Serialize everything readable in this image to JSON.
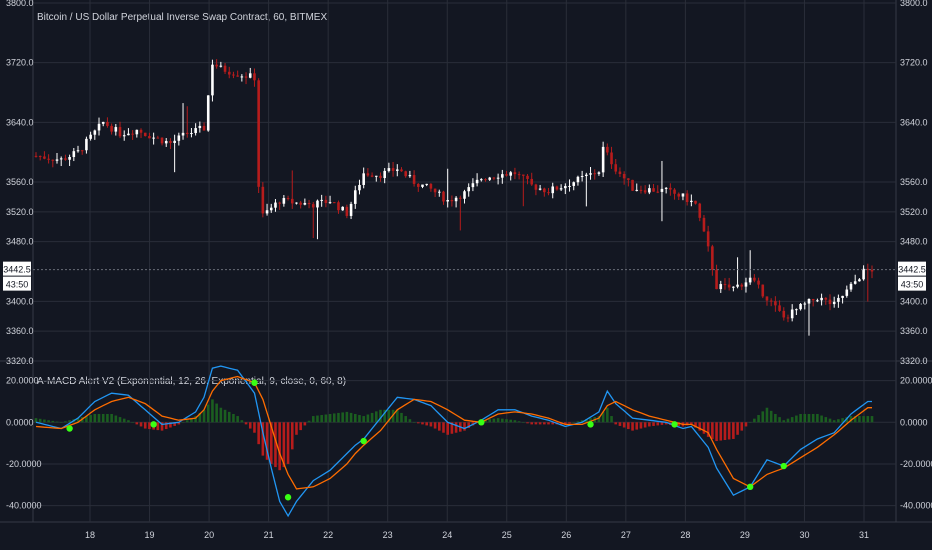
{
  "header": {
    "title": "Bitcoin / US Dollar Perpetual Inverse Swap Contract, 60, BITMEX",
    "indicator_title": "A-MACD Alert V2 (Exponential, 12, 26, Exponential, 9, close, 0, 60, 8)"
  },
  "colors": {
    "background": "#131722",
    "grid": "#2a2e39",
    "up_candle": "#ffffff",
    "down_candle": "#b71c1c",
    "macd_line": "#2196f3",
    "signal_line": "#ff6d00",
    "hist_positive": "#1b5e20",
    "hist_negative": "#b71c1c",
    "cross_marker": "#39ff14",
    "axis_text": "#d1d4dc"
  },
  "chart_data": [
    {
      "type": "candlestick",
      "price_axis": {
        "ticks": [
          "3800.0",
          "3720.0",
          "3640.0",
          "3560.0",
          "3520.0",
          "3480.0",
          "3400.0",
          "3360.0",
          "3320.0"
        ],
        "range": [
          3320,
          3800
        ]
      },
      "time_axis": {
        "ticks": [
          "18",
          "19",
          "20",
          "21",
          "22",
          "23",
          "24",
          "25",
          "26",
          "27",
          "28",
          "29",
          "30",
          "31"
        ]
      },
      "price_path": [
        [
          0,
          3595
        ],
        [
          6,
          3590
        ],
        [
          10,
          3600
        ],
        [
          16,
          3640
        ],
        [
          20,
          3625
        ],
        [
          24,
          3630
        ],
        [
          28,
          3620
        ],
        [
          32,
          3612
        ],
        [
          36,
          3625
        ],
        [
          40,
          3632
        ],
        [
          42,
          3720
        ],
        [
          44,
          3712
        ],
        [
          48,
          3705
        ],
        [
          52,
          3700
        ],
        [
          53,
          3555
        ],
        [
          54,
          3515
        ],
        [
          58,
          3535
        ],
        [
          62,
          3532
        ],
        [
          66,
          3530
        ],
        [
          70,
          3535
        ],
        [
          74,
          3518
        ],
        [
          78,
          3572
        ],
        [
          82,
          3570
        ],
        [
          86,
          3578
        ],
        [
          90,
          3560
        ],
        [
          94,
          3550
        ],
        [
          98,
          3535
        ],
        [
          102,
          3545
        ],
        [
          106,
          3565
        ],
        [
          110,
          3570
        ],
        [
          114,
          3572
        ],
        [
          118,
          3555
        ],
        [
          122,
          3548
        ],
        [
          126,
          3556
        ],
        [
          130,
          3565
        ],
        [
          134,
          3575
        ],
        [
          135,
          3605
        ],
        [
          138,
          3578
        ],
        [
          142,
          3552
        ],
        [
          146,
          3550
        ],
        [
          150,
          3548
        ],
        [
          154,
          3540
        ],
        [
          157,
          3530
        ],
        [
          160,
          3470
        ],
        [
          162,
          3420
        ],
        [
          166,
          3418
        ],
        [
          170,
          3430
        ],
        [
          174,
          3405
        ],
        [
          178,
          3378
        ],
        [
          182,
          3392
        ],
        [
          186,
          3405
        ],
        [
          190,
          3395
        ],
        [
          194,
          3420
        ],
        [
          197,
          3440
        ],
        [
          199,
          3442.5
        ]
      ],
      "last_price": "3442.5",
      "countdown": "43:50"
    },
    {
      "type": "macd",
      "y_axis": {
        "ticks": [
          "20.0000",
          "0.0000",
          "-20.0000",
          "-40.0000"
        ],
        "range": [
          -45,
          28
        ]
      },
      "macd_path": [
        [
          0,
          0
        ],
        [
          6,
          -3
        ],
        [
          10,
          2
        ],
        [
          14,
          10
        ],
        [
          18,
          14
        ],
        [
          22,
          13
        ],
        [
          26,
          6
        ],
        [
          30,
          -1
        ],
        [
          34,
          0
        ],
        [
          38,
          5
        ],
        [
          40,
          12
        ],
        [
          42,
          26
        ],
        [
          44,
          27
        ],
        [
          48,
          25
        ],
        [
          52,
          14
        ],
        [
          54,
          -5
        ],
        [
          56,
          -22
        ],
        [
          58,
          -38
        ],
        [
          60,
          -45
        ],
        [
          62,
          -38
        ],
        [
          66,
          -28
        ],
        [
          70,
          -23
        ],
        [
          74,
          -15
        ],
        [
          76,
          -11
        ],
        [
          78,
          -8
        ],
        [
          82,
          2
        ],
        [
          86,
          12
        ],
        [
          90,
          11
        ],
        [
          94,
          8
        ],
        [
          98,
          0
        ],
        [
          102,
          -3
        ],
        [
          106,
          1
        ],
        [
          110,
          6
        ],
        [
          114,
          6
        ],
        [
          118,
          3
        ],
        [
          122,
          1
        ],
        [
          126,
          -2
        ],
        [
          130,
          0
        ],
        [
          134,
          5
        ],
        [
          136,
          15
        ],
        [
          138,
          9
        ],
        [
          142,
          2
        ],
        [
          146,
          1
        ],
        [
          150,
          0
        ],
        [
          154,
          -3
        ],
        [
          156,
          -2
        ],
        [
          160,
          -12
        ],
        [
          162,
          -22
        ],
        [
          166,
          -35
        ],
        [
          170,
          -31
        ],
        [
          174,
          -18
        ],
        [
          178,
          -21
        ],
        [
          182,
          -13
        ],
        [
          186,
          -8
        ],
        [
          190,
          -5
        ],
        [
          194,
          4
        ],
        [
          198,
          10
        ]
      ],
      "signal_path": [
        [
          0,
          -2
        ],
        [
          6,
          -3
        ],
        [
          10,
          0
        ],
        [
          14,
          6
        ],
        [
          18,
          10
        ],
        [
          22,
          12
        ],
        [
          26,
          9
        ],
        [
          30,
          3
        ],
        [
          34,
          1
        ],
        [
          38,
          2
        ],
        [
          40,
          6
        ],
        [
          42,
          15
        ],
        [
          44,
          20
        ],
        [
          48,
          22
        ],
        [
          52,
          19
        ],
        [
          54,
          11
        ],
        [
          56,
          -2
        ],
        [
          58,
          -15
        ],
        [
          60,
          -25
        ],
        [
          62,
          -32
        ],
        [
          66,
          -31
        ],
        [
          70,
          -27
        ],
        [
          74,
          -20
        ],
        [
          76,
          -15
        ],
        [
          78,
          -11
        ],
        [
          82,
          -4
        ],
        [
          86,
          6
        ],
        [
          90,
          11
        ],
        [
          94,
          10
        ],
        [
          98,
          6
        ],
        [
          102,
          1
        ],
        [
          106,
          0
        ],
        [
          110,
          4
        ],
        [
          114,
          5
        ],
        [
          118,
          4
        ],
        [
          122,
          2
        ],
        [
          126,
          -1
        ],
        [
          130,
          -1
        ],
        [
          134,
          2
        ],
        [
          136,
          8
        ],
        [
          138,
          10
        ],
        [
          142,
          6
        ],
        [
          146,
          3
        ],
        [
          150,
          1
        ],
        [
          154,
          -1
        ],
        [
          156,
          -1
        ],
        [
          160,
          -5
        ],
        [
          162,
          -13
        ],
        [
          166,
          -27
        ],
        [
          170,
          -31
        ],
        [
          174,
          -25
        ],
        [
          178,
          -22
        ],
        [
          182,
          -17
        ],
        [
          186,
          -12
        ],
        [
          190,
          -6
        ],
        [
          194,
          1
        ],
        [
          198,
          7
        ]
      ],
      "cross_markers": [
        [
          8,
          -3
        ],
        [
          28,
          -1
        ],
        [
          52,
          19
        ],
        [
          60,
          -36
        ],
        [
          78,
          -9
        ],
        [
          106,
          0
        ],
        [
          132,
          -1
        ],
        [
          152,
          -1
        ],
        [
          170,
          -31
        ],
        [
          178,
          -21
        ]
      ]
    }
  ]
}
